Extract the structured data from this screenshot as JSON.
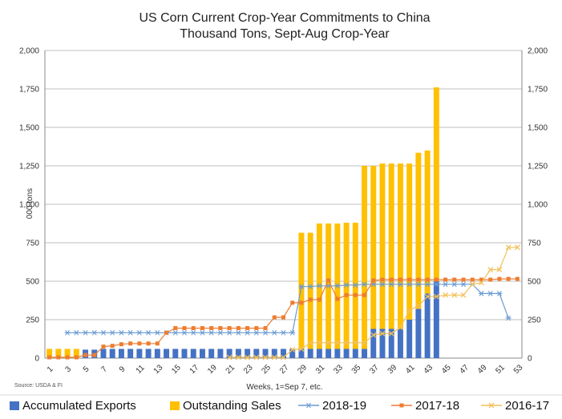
{
  "chart_data": {
    "type": "bar",
    "title": "US Corn Current Crop-Year Commitments to China",
    "subtitle": "Thousand Tons, Sept-Aug Crop-Year",
    "xlabel": "Weeks, 1=Sep 7, etc.",
    "ylabel": "000 tons",
    "source": "Source: USDA & FI",
    "ylim": [
      0,
      2000
    ],
    "y_ticks": [
      "0",
      "250",
      "500",
      "750",
      "1,000",
      "1,250",
      "1,500",
      "1,750",
      "2,000"
    ],
    "x_tick_labels": [
      "1",
      "3",
      "5",
      "7",
      "9",
      "11",
      "13",
      "15",
      "17",
      "19",
      "21",
      "23",
      "25",
      "27",
      "29",
      "31",
      "33",
      "35",
      "37",
      "39",
      "41",
      "43",
      "45",
      "47",
      "49",
      "51",
      "53"
    ],
    "weeks": [
      1,
      2,
      3,
      4,
      5,
      6,
      7,
      8,
      9,
      10,
      11,
      12,
      13,
      14,
      15,
      16,
      17,
      18,
      19,
      20,
      21,
      22,
      23,
      24,
      25,
      26,
      27,
      28,
      29,
      30,
      31,
      32,
      33,
      34,
      35,
      36,
      37,
      38,
      39,
      40,
      41,
      42,
      43,
      44,
      45,
      46,
      47,
      48,
      49,
      50,
      51,
      52,
      53
    ],
    "legend": [
      {
        "name": "Accumulated Exports",
        "color": "#4472C4",
        "kind": "bar"
      },
      {
        "name": "Outstanding Sales",
        "color": "#FFC000",
        "kind": "bar"
      },
      {
        "name": "2018-19",
        "color": "#6A9BD3",
        "kind": "line-star"
      },
      {
        "name": "2017-18",
        "color": "#ED7D31",
        "kind": "line-square"
      },
      {
        "name": "2016-17",
        "color": "#F2C05A",
        "kind": "line-x"
      }
    ],
    "bars": {
      "accumulated_exports": [
        0,
        0,
        0,
        0,
        55,
        55,
        60,
        60,
        60,
        60,
        60,
        60,
        60,
        60,
        60,
        60,
        60,
        60,
        60,
        60,
        60,
        60,
        60,
        60,
        60,
        60,
        60,
        60,
        60,
        60,
        60,
        60,
        60,
        60,
        60,
        60,
        190,
        190,
        190,
        190,
        250,
        320,
        420,
        500
      ],
      "outstanding_sales": [
        60,
        60,
        60,
        60,
        0,
        0,
        0,
        0,
        0,
        0,
        0,
        0,
        0,
        0,
        0,
        0,
        0,
        0,
        0,
        0,
        0,
        0,
        0,
        0,
        0,
        0,
        0,
        0,
        755,
        755,
        815,
        815,
        815,
        820,
        820,
        1190,
        1060,
        1075,
        1075,
        1075,
        1015,
        1015,
        930,
        1260
      ]
    },
    "series": [
      {
        "name": "2018-19",
        "values": [
          null,
          null,
          165,
          165,
          165,
          165,
          165,
          165,
          165,
          165,
          165,
          165,
          165,
          165,
          165,
          165,
          165,
          165,
          165,
          165,
          165,
          165,
          165,
          165,
          165,
          165,
          165,
          165,
          465,
          465,
          470,
          470,
          470,
          475,
          475,
          480,
          480,
          480,
          480,
          480,
          480,
          480,
          480,
          480,
          480,
          480,
          480,
          480,
          420,
          420,
          420,
          260,
          null
        ]
      },
      {
        "name": "2017-18",
        "values": [
          5,
          5,
          5,
          5,
          20,
          20,
          75,
          80,
          90,
          95,
          95,
          95,
          95,
          165,
          195,
          195,
          195,
          195,
          195,
          195,
          195,
          195,
          195,
          195,
          195,
          265,
          265,
          360,
          360,
          380,
          380,
          505,
          385,
          410,
          410,
          410,
          505,
          510,
          510,
          510,
          510,
          510,
          510,
          510,
          510,
          510,
          510,
          510,
          510,
          510,
          515,
          515,
          515
        ]
      },
      {
        "name": "2016-17",
        "values": [
          null,
          null,
          null,
          null,
          null,
          null,
          null,
          null,
          null,
          null,
          null,
          null,
          null,
          null,
          null,
          null,
          null,
          null,
          null,
          null,
          5,
          5,
          5,
          5,
          5,
          5,
          5,
          55,
          60,
          100,
          100,
          100,
          100,
          100,
          100,
          100,
          150,
          160,
          160,
          200,
          310,
          340,
          400,
          400,
          410,
          410,
          410,
          480,
          490,
          575,
          575,
          720,
          720
        ]
      }
    ]
  }
}
